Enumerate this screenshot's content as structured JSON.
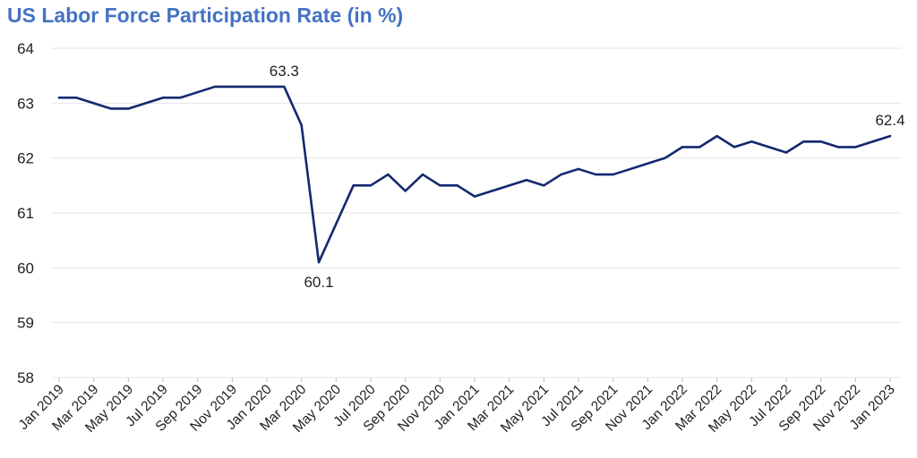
{
  "chart_data": {
    "type": "line",
    "title": "US Labor Force Participation Rate (in %)",
    "xlabel": "",
    "ylabel": "",
    "ylim": [
      58,
      64
    ],
    "yticks": [
      "58",
      "59",
      "60",
      "61",
      "62",
      "63",
      "64"
    ],
    "grid": true,
    "legend": "none",
    "x_tick_labels": [
      "Jan 2019",
      "Mar 2019",
      "May 2019",
      "Jul 2019",
      "Sep 2019",
      "Nov 2019",
      "Jan 2020",
      "Mar 2020",
      "May 2020",
      "Jul 2020",
      "Sep 2020",
      "Nov 2020",
      "Jan 2021",
      "Mar 2021",
      "May 2021",
      "Jul 2021",
      "Sep 2021",
      "Nov 2021",
      "Jan 2022",
      "Mar 2022",
      "May 2022",
      "Jul 2022",
      "Sep 2022",
      "Nov 2022",
      "Jan 2023"
    ],
    "x": [
      "Jan 2019",
      "Feb 2019",
      "Mar 2019",
      "Apr 2019",
      "May 2019",
      "Jun 2019",
      "Jul 2019",
      "Aug 2019",
      "Sep 2019",
      "Oct 2019",
      "Nov 2019",
      "Dec 2019",
      "Jan 2020",
      "Feb 2020",
      "Mar 2020",
      "Apr 2020",
      "May 2020",
      "Jun 2020",
      "Jul 2020",
      "Aug 2020",
      "Sep 2020",
      "Oct 2020",
      "Nov 2020",
      "Dec 2020",
      "Jan 2021",
      "Feb 2021",
      "Mar 2021",
      "Apr 2021",
      "May 2021",
      "Jun 2021",
      "Jul 2021",
      "Aug 2021",
      "Sep 2021",
      "Oct 2021",
      "Nov 2021",
      "Dec 2021",
      "Jan 2022",
      "Feb 2022",
      "Mar 2022",
      "Apr 2022",
      "May 2022",
      "Jun 2022",
      "Jul 2022",
      "Aug 2022",
      "Sep 2022",
      "Oct 2022",
      "Nov 2022",
      "Dec 2022",
      "Jan 2023"
    ],
    "series": [
      {
        "values": [
          63.1,
          63.1,
          63.0,
          62.9,
          62.9,
          63.0,
          63.1,
          63.1,
          63.2,
          63.3,
          63.3,
          63.3,
          63.3,
          63.3,
          62.6,
          60.1,
          60.8,
          61.5,
          61.5,
          61.7,
          61.4,
          61.7,
          61.5,
          61.5,
          61.3,
          61.4,
          61.5,
          61.6,
          61.5,
          61.7,
          61.8,
          61.7,
          61.7,
          61.8,
          61.9,
          62.0,
          62.2,
          62.2,
          62.4,
          62.2,
          62.3,
          62.2,
          62.1,
          62.3,
          62.3,
          62.2,
          62.2,
          62.3,
          62.4
        ],
        "color": "#14286e"
      }
    ],
    "data_labels": [
      {
        "index": 13,
        "text": "63.3",
        "position": "above"
      },
      {
        "index": 15,
        "text": "60.1",
        "position": "below"
      },
      {
        "index": 48,
        "text": "62.4",
        "position": "above"
      }
    ],
    "colors": {
      "title": "#4472c4",
      "line": "#14286e",
      "grid": "#e6e6e6"
    }
  }
}
